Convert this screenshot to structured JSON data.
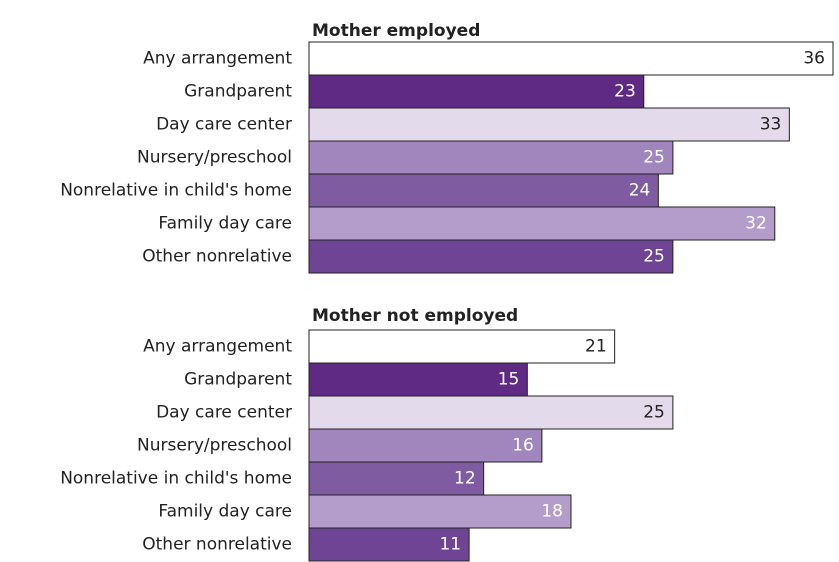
{
  "chart_data": [
    {
      "type": "bar",
      "orientation": "horizontal",
      "title": "Mother employed",
      "categories": [
        "Any arrangement",
        "Grandparent",
        "Day care center",
        "Nursery/preschool",
        "Nonrelative in child's home",
        "Family day care",
        "Other nonrelative"
      ],
      "values": [
        36,
        23,
        33,
        25,
        24,
        32,
        25
      ],
      "colors": [
        "#ffffff",
        "#5f2a84",
        "#e3daeb",
        "#a086bc",
        "#7f5ca1",
        "#b49dca",
        "#6f4495"
      ]
    },
    {
      "type": "bar",
      "orientation": "horizontal",
      "title": "Mother not employed",
      "categories": [
        "Any arrangement",
        "Grandparent",
        "Day care center",
        "Nursery/preschool",
        "Nonrelative in child's home",
        "Family day care",
        "Other nonrelative"
      ],
      "values": [
        21,
        15,
        25,
        16,
        12,
        18,
        11
      ],
      "colors": [
        "#ffffff",
        "#5f2a84",
        "#e3daeb",
        "#a086bc",
        "#7f5ca1",
        "#b49dca",
        "#6f4495"
      ]
    }
  ]
}
